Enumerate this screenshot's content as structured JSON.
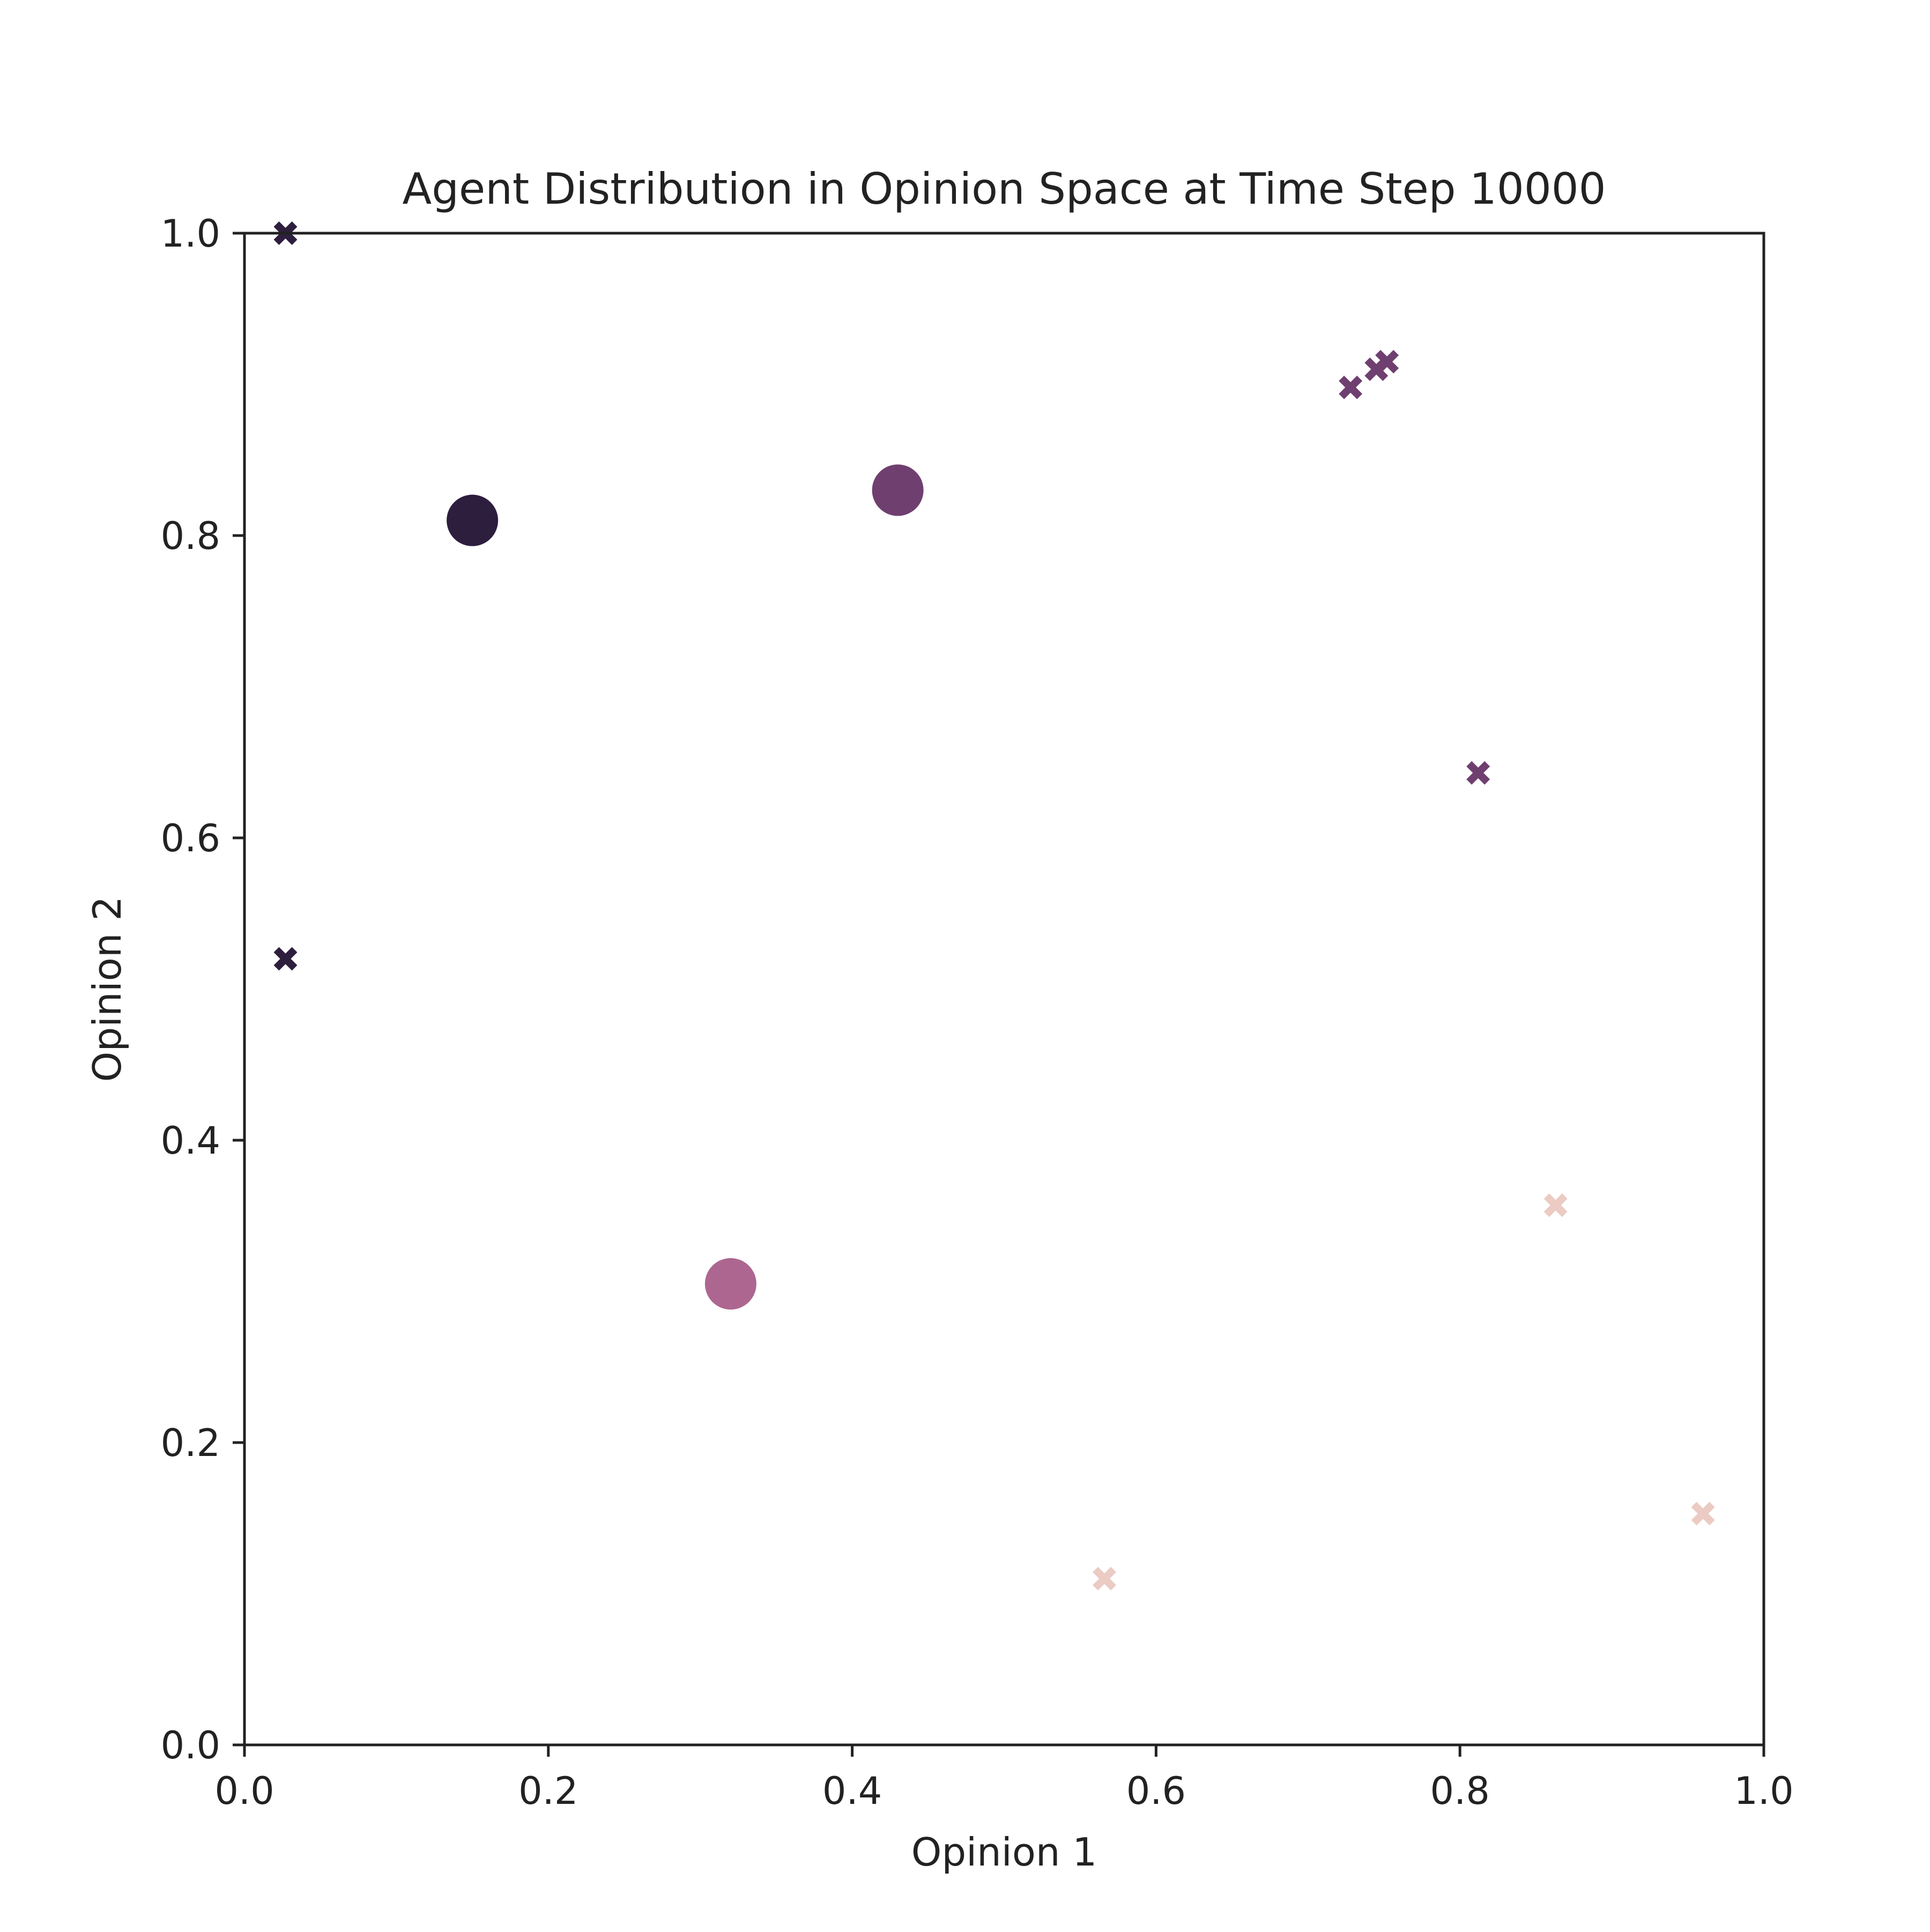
{
  "chart_data": {
    "type": "scatter",
    "title": "Agent Distribution in Opinion Space at Time Step 10000",
    "xlabel": "Opinion 1",
    "ylabel": "Opinion 2",
    "xlim": [
      0.0,
      1.0
    ],
    "ylim": [
      0.0,
      1.0
    ],
    "xticks": [
      "0.0",
      "0.2",
      "0.4",
      "0.6",
      "0.8",
      "1.0"
    ],
    "yticks": [
      "0.0",
      "0.2",
      "0.4",
      "0.6",
      "0.8",
      "1.0"
    ],
    "grid": false,
    "legend": "none",
    "series": [
      {
        "marker": "circle",
        "points": [
          {
            "x": 0.15,
            "y": 0.81,
            "color": "#2d1e3e"
          },
          {
            "x": 0.43,
            "y": 0.83,
            "color": "#6f3f70"
          },
          {
            "x": 0.32,
            "y": 0.305,
            "color": "#ad6690"
          }
        ]
      },
      {
        "marker": "x",
        "points": [
          {
            "x": 0.027,
            "y": 1.0,
            "color": "#2d1e3e"
          },
          {
            "x": 0.027,
            "y": 0.52,
            "color": "#2d1e3e"
          },
          {
            "x": 0.728,
            "y": 0.898,
            "color": "#6f3f70"
          },
          {
            "x": 0.745,
            "y": 0.91,
            "color": "#6f3f70"
          },
          {
            "x": 0.752,
            "y": 0.915,
            "color": "#6f3f70"
          },
          {
            "x": 0.812,
            "y": 0.643,
            "color": "#6f3f70"
          },
          {
            "x": 0.863,
            "y": 0.357,
            "color": "#ebcbc3"
          },
          {
            "x": 0.566,
            "y": 0.11,
            "color": "#ebcbc3"
          },
          {
            "x": 0.96,
            "y": 0.153,
            "color": "#ebcbc3"
          }
        ]
      }
    ]
  }
}
